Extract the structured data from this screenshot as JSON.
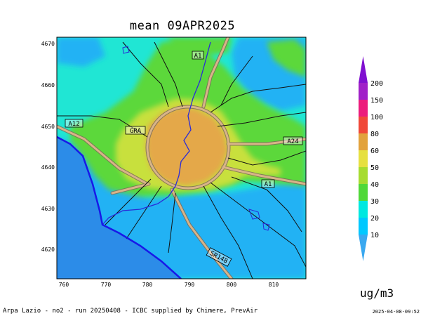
{
  "title": "mean 09APR2025",
  "unit": "ug/m3",
  "footer": "Arpa Lazio - no2 - run 20250408 - ICBC supplied by Chimere, PrevAir",
  "timestamp": "2025-04-08-09:52",
  "x_ticks": [
    "760",
    "770",
    "780",
    "790",
    "800",
    "810"
  ],
  "y_ticks": [
    "4670",
    "4660",
    "4650",
    "4640",
    "4630",
    "4620"
  ],
  "road_labels": [
    "A1",
    "A12",
    "GRA",
    "A24",
    "A1",
    "SR148"
  ],
  "colorbar": {
    "levels": [
      "10",
      "20",
      "30",
      "40",
      "50",
      "60",
      "80",
      "100",
      "150",
      "200"
    ],
    "colors": [
      "#39a8f0",
      "#00c8ff",
      "#00e8e0",
      "#50d838",
      "#a6dc30",
      "#e6e040",
      "#e2a23c",
      "#f04838",
      "#ec1c7c",
      "#a020c8",
      "#8010d0"
    ]
  },
  "map_colors": {
    "sea": "#2c8ce8",
    "level_20": "#22b2f4",
    "level_30": "#20e6d4",
    "level_40": "#9ee038",
    "level_50": "#c6e03c",
    "level_60": "#e4a848",
    "coastline": "#1818e8",
    "river": "#2a2ad8",
    "road": "#c8a070"
  }
}
